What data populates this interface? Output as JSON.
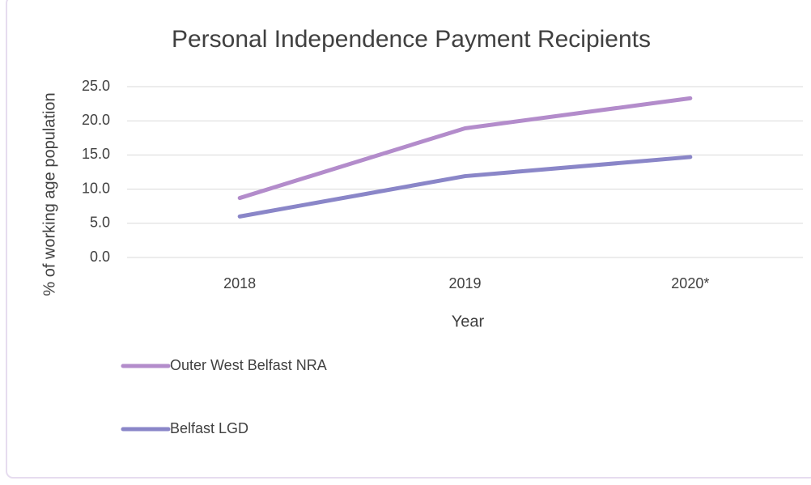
{
  "chart_data": {
    "type": "line",
    "title": "Personal Independence Payment Recipients",
    "x_label": "Year",
    "y_label": "% of working age population",
    "categories": [
      "2018",
      "2019",
      "2020*"
    ],
    "series": [
      {
        "name": "Outer West Belfast NRA",
        "color": "#b38ccb",
        "values": [
          8.7,
          18.9,
          23.3
        ]
      },
      {
        "name": "Belfast LGD",
        "color": "#8a86c8",
        "values": [
          6.0,
          11.9,
          14.7
        ]
      }
    ],
    "ylim": [
      0,
      25
    ],
    "yticks": [
      {
        "value": 0,
        "label": "0.0"
      },
      {
        "value": 5,
        "label": "5.0"
      },
      {
        "value": 10,
        "label": "10.0"
      },
      {
        "value": 15,
        "label": "15.0"
      },
      {
        "value": 20,
        "label": "20.0"
      },
      {
        "value": 25,
        "label": "25.0"
      }
    ],
    "grid": true,
    "legend": "bottom-left"
  }
}
